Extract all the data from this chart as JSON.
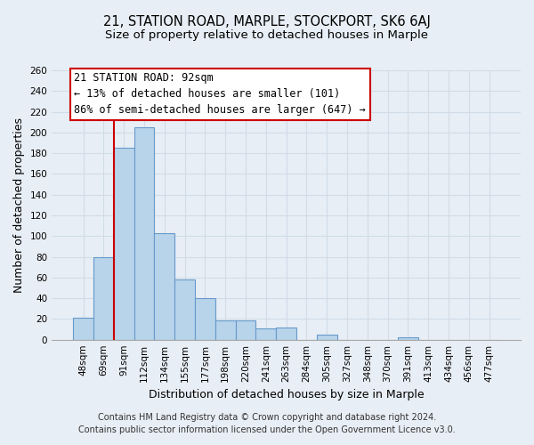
{
  "title": "21, STATION ROAD, MARPLE, STOCKPORT, SK6 6AJ",
  "subtitle": "Size of property relative to detached houses in Marple",
  "xlabel": "Distribution of detached houses by size in Marple",
  "ylabel": "Number of detached properties",
  "categories": [
    "48sqm",
    "69sqm",
    "91sqm",
    "112sqm",
    "134sqm",
    "155sqm",
    "177sqm",
    "198sqm",
    "220sqm",
    "241sqm",
    "263sqm",
    "284sqm",
    "305sqm",
    "327sqm",
    "348sqm",
    "370sqm",
    "391sqm",
    "413sqm",
    "434sqm",
    "456sqm",
    "477sqm"
  ],
  "values": [
    21,
    80,
    185,
    205,
    103,
    58,
    40,
    19,
    19,
    11,
    12,
    0,
    5,
    0,
    0,
    0,
    2,
    0,
    0,
    0,
    0
  ],
  "bar_color": "#b8d4ea",
  "bar_edge_color": "#6699cc",
  "highlight_line_color": "#cc0000",
  "annotation_title": "21 STATION ROAD: 92sqm",
  "annotation_line1": "← 13% of detached houses are smaller (101)",
  "annotation_line2": "86% of semi-detached houses are larger (647) →",
  "annotation_box_edge_color": "#cc0000",
  "ylim": [
    0,
    260
  ],
  "yticks": [
    0,
    20,
    40,
    60,
    80,
    100,
    120,
    140,
    160,
    180,
    200,
    220,
    240,
    260
  ],
  "footer_line1": "Contains HM Land Registry data © Crown copyright and database right 2024.",
  "footer_line2": "Contains public sector information licensed under the Open Government Licence v3.0.",
  "background_color": "#e8eef5",
  "grid_color": "#d0dce8",
  "title_fontsize": 10.5,
  "subtitle_fontsize": 9.5,
  "axis_label_fontsize": 9,
  "tick_fontsize": 7.5,
  "annotation_fontsize": 8.5,
  "footer_fontsize": 7
}
